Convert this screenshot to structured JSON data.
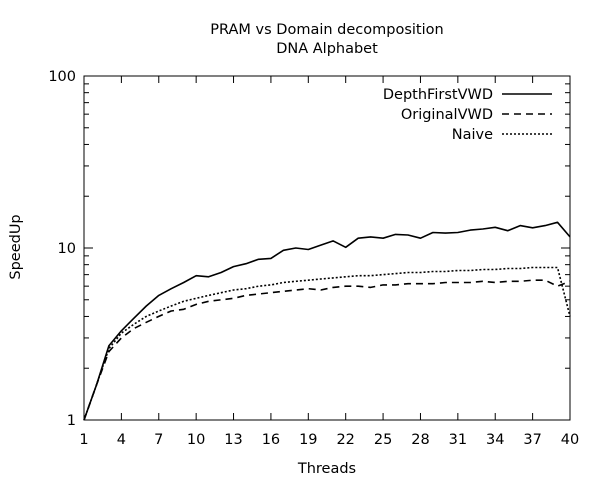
{
  "chart_data": {
    "type": "line",
    "title": "PRAM vs Domain decomposition",
    "subtitle": "DNA Alphabet",
    "xlabel": "Threads",
    "ylabel": "SpeedUp",
    "xlim": [
      1,
      40
    ],
    "ylim": [
      1,
      100
    ],
    "yscale": "log",
    "xticks": [
      1,
      4,
      7,
      10,
      13,
      16,
      19,
      22,
      25,
      28,
      31,
      34,
      37,
      40
    ],
    "yticks": [
      1,
      10,
      100
    ],
    "ytick_labels": [
      "1",
      "10",
      "100"
    ],
    "grid": false,
    "legend_position": "top-right",
    "x": [
      1,
      2,
      3,
      4,
      5,
      6,
      7,
      8,
      9,
      10,
      11,
      12,
      13,
      14,
      15,
      16,
      17,
      18,
      19,
      20,
      21,
      22,
      23,
      24,
      25,
      26,
      27,
      28,
      29,
      30,
      31,
      32,
      33,
      34,
      35,
      36,
      37,
      38,
      39,
      40
    ],
    "series": [
      {
        "name": "DepthFirstVWD",
        "style": "solid",
        "values": [
          1.0,
          1.6,
          2.7,
          3.3,
          3.9,
          4.6,
          5.3,
          5.8,
          6.3,
          6.9,
          6.8,
          7.2,
          7.8,
          8.1,
          8.6,
          8.7,
          9.7,
          10.0,
          9.8,
          10.4,
          11.0,
          10.1,
          11.4,
          11.6,
          11.4,
          12.0,
          11.9,
          11.4,
          12.3,
          12.2,
          12.3,
          12.7,
          12.9,
          13.2,
          12.6,
          13.5,
          13.1,
          13.5,
          14.1,
          11.6
        ]
      },
      {
        "name": "OriginalVWD",
        "style": "dashed",
        "values": [
          1.0,
          1.6,
          2.5,
          3.0,
          3.4,
          3.7,
          4.0,
          4.3,
          4.4,
          4.7,
          4.9,
          5.0,
          5.1,
          5.3,
          5.4,
          5.5,
          5.6,
          5.7,
          5.8,
          5.7,
          5.9,
          6.0,
          6.0,
          5.9,
          6.1,
          6.1,
          6.2,
          6.2,
          6.2,
          6.3,
          6.3,
          6.3,
          6.4,
          6.3,
          6.4,
          6.4,
          6.5,
          6.5,
          6.0,
          6.4
        ]
      },
      {
        "name": "Naive",
        "style": "dotted",
        "values": [
          1.0,
          1.6,
          2.6,
          3.2,
          3.6,
          4.0,
          4.3,
          4.6,
          4.9,
          5.1,
          5.3,
          5.5,
          5.7,
          5.8,
          6.0,
          6.1,
          6.3,
          6.4,
          6.5,
          6.6,
          6.7,
          6.8,
          6.9,
          6.9,
          7.0,
          7.1,
          7.2,
          7.2,
          7.3,
          7.3,
          7.4,
          7.4,
          7.5,
          7.5,
          7.6,
          7.6,
          7.7,
          7.7,
          7.7,
          4.0
        ]
      }
    ]
  }
}
